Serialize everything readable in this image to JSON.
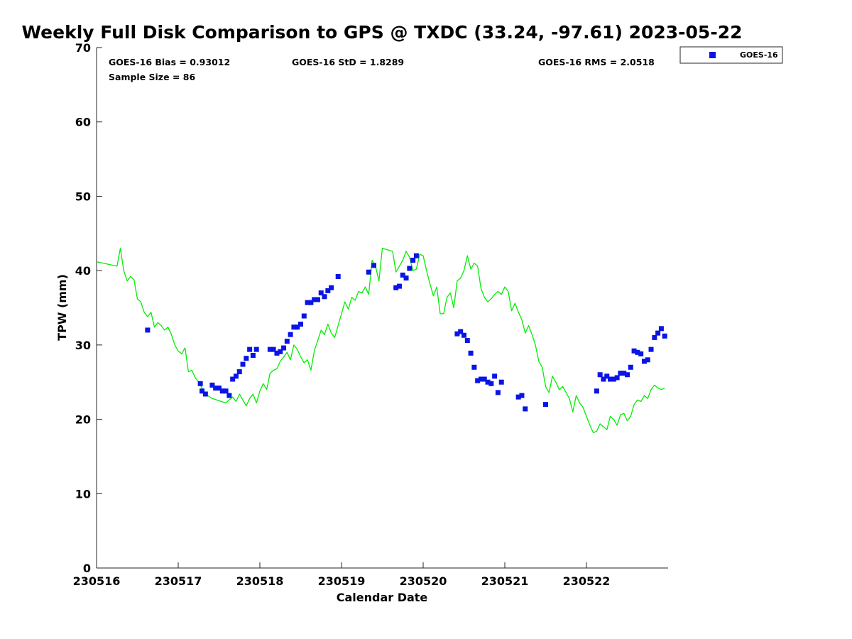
{
  "chart_data": {
    "type": "scatter",
    "title": "Weekly Full Disk Comparison to GPS @ TXDC (33.24, -97.61) 2023-05-22",
    "xlabel": "Calendar Date",
    "ylabel": "TPW (mm)",
    "xlim": [
      "2023-05-16T00:00",
      "2023-05-22T23:00"
    ],
    "ylim": [
      0,
      70
    ],
    "y_ticks": [
      0,
      10,
      20,
      30,
      40,
      50,
      60,
      70
    ],
    "x_ticks": [
      {
        "label": "230516",
        "date": "2023-05-16"
      },
      {
        "label": "230517",
        "date": "2023-05-17"
      },
      {
        "label": "230518",
        "date": "2023-05-18"
      },
      {
        "label": "230519",
        "date": "2023-05-19"
      },
      {
        "label": "230520",
        "date": "2023-05-20"
      },
      {
        "label": "230521",
        "date": "2023-05-21"
      },
      {
        "label": "230522",
        "date": "2023-05-22"
      }
    ],
    "grid": false,
    "legend_position": "outside-top-right",
    "stats": {
      "bias": "GOES-16 Bias = 0.93012",
      "std": "GOES-16 StD = 1.8289",
      "rms": "GOES-16 RMS = 2.0518",
      "sample": "Sample Size = 86"
    },
    "series": [
      {
        "name": "GOES-16",
        "type": "scatter",
        "color": "#0a14e6",
        "points": [
          [
            "2023-05-16T15:00",
            32.0
          ],
          [
            "2023-05-17T06:30",
            24.8
          ],
          [
            "2023-05-17T07:00",
            23.8
          ],
          [
            "2023-05-17T08:00",
            23.4
          ],
          [
            "2023-05-17T10:00",
            24.6
          ],
          [
            "2023-05-17T11:00",
            24.2
          ],
          [
            "2023-05-17T12:00",
            24.2
          ],
          [
            "2023-05-17T13:00",
            23.8
          ],
          [
            "2023-05-17T14:00",
            23.8
          ],
          [
            "2023-05-17T15:00",
            23.2
          ],
          [
            "2023-05-17T16:00",
            25.4
          ],
          [
            "2023-05-17T17:00",
            25.8
          ],
          [
            "2023-05-17T18:00",
            26.4
          ],
          [
            "2023-05-17T19:00",
            27.4
          ],
          [
            "2023-05-17T20:00",
            28.2
          ],
          [
            "2023-05-17T21:00",
            29.4
          ],
          [
            "2023-05-17T22:00",
            28.6
          ],
          [
            "2023-05-17T23:00",
            29.4
          ],
          [
            "2023-05-18T03:00",
            29.4
          ],
          [
            "2023-05-18T04:00",
            29.4
          ],
          [
            "2023-05-18T05:00",
            28.9
          ],
          [
            "2023-05-18T06:00",
            29.1
          ],
          [
            "2023-05-18T07:00",
            29.6
          ],
          [
            "2023-05-18T08:00",
            30.5
          ],
          [
            "2023-05-18T09:00",
            31.4
          ],
          [
            "2023-05-18T10:00",
            32.4
          ],
          [
            "2023-05-18T11:00",
            32.4
          ],
          [
            "2023-05-18T12:00",
            32.8
          ],
          [
            "2023-05-18T13:00",
            33.9
          ],
          [
            "2023-05-18T14:00",
            35.7
          ],
          [
            "2023-05-18T15:00",
            35.7
          ],
          [
            "2023-05-18T16:00",
            36.1
          ],
          [
            "2023-05-18T17:00",
            36.1
          ],
          [
            "2023-05-18T18:00",
            37.0
          ],
          [
            "2023-05-18T19:00",
            36.5
          ],
          [
            "2023-05-18T20:00",
            37.3
          ],
          [
            "2023-05-18T21:00",
            37.7
          ],
          [
            "2023-05-18T23:00",
            39.2
          ],
          [
            "2023-05-19T08:00",
            39.8
          ],
          [
            "2023-05-19T09:30",
            40.7
          ],
          [
            "2023-05-19T16:00",
            37.7
          ],
          [
            "2023-05-19T17:00",
            37.9
          ],
          [
            "2023-05-19T18:00",
            39.4
          ],
          [
            "2023-05-19T19:00",
            39.0
          ],
          [
            "2023-05-19T20:00",
            40.3
          ],
          [
            "2023-05-19T21:00",
            41.4
          ],
          [
            "2023-05-19T22:00",
            42.0
          ],
          [
            "2023-05-20T10:00",
            31.5
          ],
          [
            "2023-05-20T11:00",
            31.8
          ],
          [
            "2023-05-20T12:00",
            31.3
          ],
          [
            "2023-05-20T13:00",
            30.6
          ],
          [
            "2023-05-20T14:00",
            28.9
          ],
          [
            "2023-05-20T15:00",
            27.0
          ],
          [
            "2023-05-20T16:00",
            25.2
          ],
          [
            "2023-05-20T17:00",
            25.4
          ],
          [
            "2023-05-20T18:00",
            25.4
          ],
          [
            "2023-05-20T19:00",
            25.0
          ],
          [
            "2023-05-20T20:00",
            24.8
          ],
          [
            "2023-05-20T21:00",
            25.8
          ],
          [
            "2023-05-20T22:00",
            23.6
          ],
          [
            "2023-05-20T23:00",
            25.0
          ],
          [
            "2023-05-21T04:00",
            23.0
          ],
          [
            "2023-05-21T05:00",
            23.2
          ],
          [
            "2023-05-21T06:00",
            21.4
          ],
          [
            "2023-05-21T12:00",
            22.0
          ],
          [
            "2023-05-22T03:00",
            23.8
          ],
          [
            "2023-05-22T04:00",
            26.0
          ],
          [
            "2023-05-22T05:00",
            25.4
          ],
          [
            "2023-05-22T06:00",
            25.8
          ],
          [
            "2023-05-22T07:00",
            25.4
          ],
          [
            "2023-05-22T08:00",
            25.4
          ],
          [
            "2023-05-22T09:00",
            25.6
          ],
          [
            "2023-05-22T10:00",
            26.2
          ],
          [
            "2023-05-22T11:00",
            26.2
          ],
          [
            "2023-05-22T12:00",
            26.0
          ],
          [
            "2023-05-22T13:00",
            27.0
          ],
          [
            "2023-05-22T14:00",
            29.2
          ],
          [
            "2023-05-22T15:00",
            29.0
          ],
          [
            "2023-05-22T16:00",
            28.8
          ],
          [
            "2023-05-22T17:00",
            27.8
          ],
          [
            "2023-05-22T18:00",
            28.0
          ],
          [
            "2023-05-22T19:00",
            29.4
          ],
          [
            "2023-05-22T20:00",
            31.0
          ],
          [
            "2023-05-22T21:00",
            31.6
          ],
          [
            "2023-05-22T22:00",
            32.2
          ],
          [
            "2023-05-22T23:00",
            31.2
          ]
        ]
      },
      {
        "type": "line",
        "color": "#00ee00",
        "points": [
          [
            "2023-05-16T00:00",
            41.2
          ],
          [
            "2023-05-16T06:00",
            40.6
          ],
          [
            "2023-05-16T07:00",
            43.0
          ],
          [
            "2023-05-16T08:00",
            40.0
          ],
          [
            "2023-05-16T09:00",
            38.6
          ],
          [
            "2023-05-16T10:00",
            39.2
          ],
          [
            "2023-05-16T11:00",
            38.8
          ],
          [
            "2023-05-16T12:00",
            36.2
          ],
          [
            "2023-05-16T13:00",
            35.8
          ],
          [
            "2023-05-16T14:00",
            34.4
          ],
          [
            "2023-05-16T15:00",
            33.8
          ],
          [
            "2023-05-16T16:00",
            34.4
          ],
          [
            "2023-05-16T17:00",
            32.4
          ],
          [
            "2023-05-16T18:00",
            33.0
          ],
          [
            "2023-05-16T19:00",
            32.6
          ],
          [
            "2023-05-16T20:00",
            32.0
          ],
          [
            "2023-05-16T21:00",
            32.4
          ],
          [
            "2023-05-16T22:00",
            31.4
          ],
          [
            "2023-05-16T23:00",
            30.0
          ],
          [
            "2023-05-17T00:00",
            29.2
          ],
          [
            "2023-05-17T01:00",
            28.8
          ],
          [
            "2023-05-17T02:00",
            29.6
          ],
          [
            "2023-05-17T03:00",
            26.4
          ],
          [
            "2023-05-17T04:00",
            26.6
          ],
          [
            "2023-05-17T05:00",
            25.6
          ],
          [
            "2023-05-17T06:00",
            25.0
          ],
          [
            "2023-05-17T08:00",
            23.4
          ],
          [
            "2023-05-17T10:00",
            22.8
          ],
          [
            "2023-05-17T14:00",
            22.2
          ],
          [
            "2023-05-17T15:00",
            22.6
          ],
          [
            "2023-05-17T16:00",
            23.0
          ],
          [
            "2023-05-17T17:00",
            22.4
          ],
          [
            "2023-05-17T18:00",
            23.4
          ],
          [
            "2023-05-17T19:00",
            22.6
          ],
          [
            "2023-05-17T20:00",
            21.8
          ],
          [
            "2023-05-17T21:00",
            22.8
          ],
          [
            "2023-05-17T22:00",
            23.4
          ],
          [
            "2023-05-17T23:00",
            22.2
          ],
          [
            "2023-05-18T00:00",
            23.8
          ],
          [
            "2023-05-18T01:00",
            24.8
          ],
          [
            "2023-05-18T02:00",
            24.0
          ],
          [
            "2023-05-18T03:00",
            26.2
          ],
          [
            "2023-05-18T04:00",
            26.6
          ],
          [
            "2023-05-18T05:00",
            26.8
          ],
          [
            "2023-05-18T06:00",
            27.8
          ],
          [
            "2023-05-18T07:00",
            28.4
          ],
          [
            "2023-05-18T08:00",
            29.0
          ],
          [
            "2023-05-18T09:00",
            28.0
          ],
          [
            "2023-05-18T10:00",
            30.0
          ],
          [
            "2023-05-18T11:00",
            29.4
          ],
          [
            "2023-05-18T12:00",
            28.4
          ],
          [
            "2023-05-18T13:00",
            27.6
          ],
          [
            "2023-05-18T14:00",
            28.0
          ],
          [
            "2023-05-18T15:00",
            26.6
          ],
          [
            "2023-05-18T16:00",
            29.2
          ],
          [
            "2023-05-18T17:00",
            30.6
          ],
          [
            "2023-05-18T18:00",
            32.0
          ],
          [
            "2023-05-18T19:00",
            31.4
          ],
          [
            "2023-05-18T20:00",
            32.8
          ],
          [
            "2023-05-18T21:00",
            31.6
          ],
          [
            "2023-05-18T22:00",
            31.0
          ],
          [
            "2023-05-18T23:00",
            32.6
          ],
          [
            "2023-05-19T00:00",
            34.2
          ],
          [
            "2023-05-19T01:00",
            35.8
          ],
          [
            "2023-05-19T02:00",
            34.8
          ],
          [
            "2023-05-19T03:00",
            36.4
          ],
          [
            "2023-05-19T04:00",
            36.0
          ],
          [
            "2023-05-19T05:00",
            37.2
          ],
          [
            "2023-05-19T06:00",
            37.0
          ],
          [
            "2023-05-19T07:00",
            37.8
          ],
          [
            "2023-05-19T08:00",
            36.8
          ],
          [
            "2023-05-19T09:00",
            41.4
          ],
          [
            "2023-05-19T10:00",
            40.6
          ],
          [
            "2023-05-19T11:00",
            38.6
          ],
          [
            "2023-05-19T12:00",
            43.0
          ],
          [
            "2023-05-19T15:00",
            42.6
          ],
          [
            "2023-05-19T16:00",
            39.8
          ],
          [
            "2023-05-19T17:00",
            40.6
          ],
          [
            "2023-05-19T18:00",
            41.4
          ],
          [
            "2023-05-19T19:00",
            42.6
          ],
          [
            "2023-05-19T20:00",
            41.8
          ],
          [
            "2023-05-19T21:00",
            40.0
          ],
          [
            "2023-05-19T22:00",
            40.2
          ],
          [
            "2023-05-19T23:00",
            42.2
          ],
          [
            "2023-05-20T00:00",
            42.0
          ],
          [
            "2023-05-20T01:00",
            40.0
          ],
          [
            "2023-05-20T02:00",
            38.2
          ],
          [
            "2023-05-20T03:00",
            36.6
          ],
          [
            "2023-05-20T04:00",
            37.8
          ],
          [
            "2023-05-20T05:00",
            34.2
          ],
          [
            "2023-05-20T06:00",
            34.2
          ],
          [
            "2023-05-20T07:00",
            36.4
          ],
          [
            "2023-05-20T08:00",
            37.0
          ],
          [
            "2023-05-20T09:00",
            35.0
          ],
          [
            "2023-05-20T10:00",
            38.6
          ],
          [
            "2023-05-20T11:00",
            39.0
          ],
          [
            "2023-05-20T12:00",
            40.0
          ],
          [
            "2023-05-20T13:00",
            42.0
          ],
          [
            "2023-05-20T14:00",
            40.2
          ],
          [
            "2023-05-20T15:00",
            41.0
          ],
          [
            "2023-05-20T16:00",
            40.6
          ],
          [
            "2023-05-20T17:00",
            37.6
          ],
          [
            "2023-05-20T18:00",
            36.4
          ],
          [
            "2023-05-20T19:00",
            35.8
          ],
          [
            "2023-05-20T20:00",
            36.2
          ],
          [
            "2023-05-20T21:00",
            36.8
          ],
          [
            "2023-05-20T22:00",
            37.2
          ],
          [
            "2023-05-20T23:00",
            36.8
          ],
          [
            "2023-05-21T00:00",
            37.8
          ],
          [
            "2023-05-21T01:00",
            37.2
          ],
          [
            "2023-05-21T02:00",
            34.6
          ],
          [
            "2023-05-21T03:00",
            35.6
          ],
          [
            "2023-05-21T04:00",
            34.4
          ],
          [
            "2023-05-21T05:00",
            33.4
          ],
          [
            "2023-05-21T06:00",
            31.6
          ],
          [
            "2023-05-21T07:00",
            32.6
          ],
          [
            "2023-05-21T08:00",
            31.4
          ],
          [
            "2023-05-21T09:00",
            30.0
          ],
          [
            "2023-05-21T10:00",
            27.8
          ],
          [
            "2023-05-21T11:00",
            27.0
          ],
          [
            "2023-05-21T12:00",
            24.4
          ],
          [
            "2023-05-21T13:00",
            23.6
          ],
          [
            "2023-05-21T14:00",
            25.8
          ],
          [
            "2023-05-21T15:00",
            25.0
          ],
          [
            "2023-05-21T16:00",
            24.0
          ],
          [
            "2023-05-21T17:00",
            24.4
          ],
          [
            "2023-05-21T18:00",
            23.6
          ],
          [
            "2023-05-21T19:00",
            22.8
          ],
          [
            "2023-05-21T20:00",
            21.0
          ],
          [
            "2023-05-21T21:00",
            23.2
          ],
          [
            "2023-05-21T22:00",
            22.2
          ],
          [
            "2023-05-21T23:00",
            21.6
          ],
          [
            "2023-05-22T00:00",
            20.4
          ],
          [
            "2023-05-22T01:00",
            19.2
          ],
          [
            "2023-05-22T02:00",
            18.2
          ],
          [
            "2023-05-22T03:00",
            18.4
          ],
          [
            "2023-05-22T04:00",
            19.4
          ],
          [
            "2023-05-22T05:00",
            19.0
          ],
          [
            "2023-05-22T06:00",
            18.6
          ],
          [
            "2023-05-22T07:00",
            20.4
          ],
          [
            "2023-05-22T08:00",
            20.0
          ],
          [
            "2023-05-22T09:00",
            19.2
          ],
          [
            "2023-05-22T10:00",
            20.6
          ],
          [
            "2023-05-22T11:00",
            20.8
          ],
          [
            "2023-05-22T12:00",
            19.8
          ],
          [
            "2023-05-22T13:00",
            20.4
          ],
          [
            "2023-05-22T14:00",
            22.0
          ],
          [
            "2023-05-22T15:00",
            22.6
          ],
          [
            "2023-05-22T16:00",
            22.4
          ],
          [
            "2023-05-22T17:00",
            23.2
          ],
          [
            "2023-05-22T18:00",
            22.8
          ],
          [
            "2023-05-22T19:00",
            24.0
          ],
          [
            "2023-05-22T20:00",
            24.6
          ],
          [
            "2023-05-22T21:00",
            24.2
          ],
          [
            "2023-05-22T22:00",
            24.0
          ],
          [
            "2023-05-22T23:00",
            24.2
          ]
        ]
      }
    ]
  }
}
